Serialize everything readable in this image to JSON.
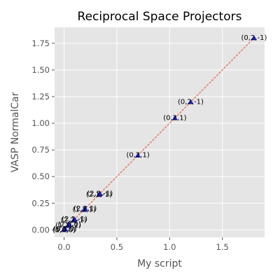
{
  "chart_data": {
    "type": "scatter",
    "title": "Reciprocal Space Projectors",
    "xlabel": "My script",
    "ylabel": "VASP NormalCar",
    "xlim": [
      -0.09,
      1.9
    ],
    "ylim": [
      -0.07,
      1.9
    ],
    "xticks": [
      0.0,
      0.5,
      1.0,
      1.5
    ],
    "yticks": [
      0.0,
      0.25,
      0.5,
      0.75,
      1.0,
      1.25,
      1.5,
      1.75
    ],
    "xtick_labels": [
      "0.0",
      "0.5",
      "1.0",
      "1.5"
    ],
    "ytick_labels": [
      "0.00",
      "0.25",
      "0.50",
      "0.75",
      "1.00",
      "1.25",
      "1.50",
      "1.75"
    ],
    "grid": true,
    "background": "#e5e5e5",
    "marker_color": "#2222cc",
    "reference_line": {
      "style": "dotted",
      "color": "#e8806a",
      "from": [
        0,
        0
      ],
      "to": [
        1.8,
        1.8
      ]
    },
    "points": [
      {
        "x": 1.8,
        "y": 1.8,
        "label": "(0,2,-1)"
      },
      {
        "x": 1.2,
        "y": 1.2,
        "label": "(0,2,-1)"
      },
      {
        "x": 1.05,
        "y": 1.05,
        "label": "(0,2,1)"
      },
      {
        "x": 0.7,
        "y": 0.7,
        "label": "(0,2,1)"
      },
      {
        "x": 0.34,
        "y": 0.34,
        "label": "(2,2,-1)"
      },
      {
        "x": 0.33,
        "y": 0.33,
        "label": "(2,1,-1)"
      },
      {
        "x": 0.2,
        "y": 0.2,
        "label": "(2,2,1)"
      },
      {
        "x": 0.19,
        "y": 0.19,
        "label": "(1,1,1)"
      },
      {
        "x": 0.1,
        "y": 0.1,
        "label": "(2,1,-1)"
      },
      {
        "x": 0.09,
        "y": 0.09,
        "label": "(2,2,-1)"
      },
      {
        "x": 0.05,
        "y": 0.05,
        "label": "(2,0,0)"
      },
      {
        "x": 0.04,
        "y": 0.04,
        "label": "(1,1,-1)"
      },
      {
        "x": 0.01,
        "y": 0.01,
        "label": "(0,1,0)"
      },
      {
        "x": 0.0,
        "y": 0.0,
        "label": "(0,0,0)"
      },
      {
        "x": 0.0,
        "y": 0.0,
        "label": "(1,0,0)"
      }
    ]
  }
}
